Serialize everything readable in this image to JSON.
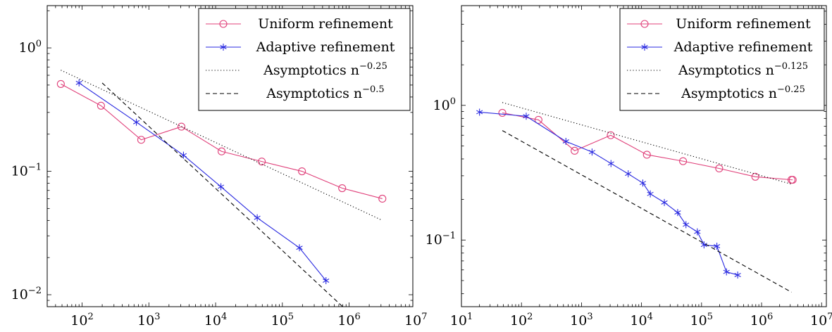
{
  "chart_data": [
    {
      "type": "line",
      "xscale": "log",
      "yscale": "log",
      "xlim": [
        30,
        9000000
      ],
      "ylim": [
        0.008,
        2.2
      ],
      "xticks": [
        {
          "v": 100,
          "label": "10^2"
        },
        {
          "v": 1000,
          "label": "10^3"
        },
        {
          "v": 10000,
          "label": "10^4"
        },
        {
          "v": 100000,
          "label": "10^5"
        },
        {
          "v": 1000000,
          "label": "10^6"
        },
        {
          "v": 10000000,
          "label": "10^7"
        }
      ],
      "yticks": [
        {
          "v": 0.01,
          "label": "10^-2"
        },
        {
          "v": 0.1,
          "label": "10^-1"
        },
        {
          "v": 1,
          "label": "10^0"
        }
      ],
      "grid": false,
      "legend_position": "top-right",
      "series": [
        {
          "name": "Uniform refinement",
          "color": "#e0407a",
          "marker": "circle",
          "dash": "solid",
          "x": [
            48,
            192,
            768,
            3072,
            12288,
            49152,
            196608,
            786432,
            3145728
          ],
          "y": [
            0.51,
            0.34,
            0.18,
            0.23,
            0.145,
            0.12,
            0.1,
            0.073,
            0.06
          ]
        },
        {
          "name": "Adaptive refinement",
          "color": "#2a2ae0",
          "marker": "star",
          "dash": "solid",
          "x": [
            90,
            650,
            3300,
            12000,
            42000,
            180000,
            450000
          ],
          "y": [
            0.52,
            0.25,
            0.135,
            0.075,
            0.042,
            0.024,
            0.013
          ]
        },
        {
          "name": "Asymptotics n^{-0.25}",
          "color": "#000000",
          "marker": "none",
          "dash": "dotted",
          "x": [
            48,
            3145728
          ],
          "y": [
            0.66,
            0.04
          ]
        },
        {
          "name": "Asymptotics n^{-0.5}",
          "color": "#000000",
          "marker": "none",
          "dash": "dashed",
          "x": [
            200,
            800000
          ],
          "y": [
            0.52,
            0.008
          ]
        }
      ],
      "legend_labels": [
        {
          "base": "Uniform refinement",
          "exp": ""
        },
        {
          "base": "Adaptive refinement",
          "exp": ""
        },
        {
          "base": "Asymptotics n",
          "exp": "−0.25"
        },
        {
          "base": "Asymptotics n",
          "exp": "−0.5"
        }
      ]
    },
    {
      "type": "line",
      "xscale": "log",
      "yscale": "log",
      "xlim": [
        10,
        12000000
      ],
      "ylim": [
        0.032,
        5.5
      ],
      "xticks": [
        {
          "v": 10,
          "label": "10^1"
        },
        {
          "v": 100,
          "label": "10^2"
        },
        {
          "v": 1000,
          "label": "10^3"
        },
        {
          "v": 10000,
          "label": "10^4"
        },
        {
          "v": 100000,
          "label": "10^5"
        },
        {
          "v": 1000000,
          "label": "10^6"
        },
        {
          "v": 10000000,
          "label": "10^7"
        }
      ],
      "yticks": [
        {
          "v": 0.1,
          "label": "10^-1"
        },
        {
          "v": 1,
          "label": "10^0"
        }
      ],
      "grid": false,
      "legend_position": "top-right",
      "series": [
        {
          "name": "Uniform refinement",
          "color": "#e0407a",
          "marker": "circle",
          "dash": "solid",
          "x": [
            48,
            192,
            768,
            3072,
            12288,
            49152,
            196608,
            786432,
            3145728,
            3300000
          ],
          "y": [
            0.88,
            0.78,
            0.46,
            0.6,
            0.43,
            0.385,
            0.34,
            0.295,
            0.28,
            0.28
          ]
        },
        {
          "name": "Adaptive refinement",
          "color": "#2a2ae0",
          "marker": "star",
          "dash": "solid",
          "x": [
            20,
            120,
            550,
            1500,
            3100,
            6000,
            10500,
            14000,
            24000,
            40000,
            55000,
            85000,
            110000,
            180000,
            260000,
            400000
          ],
          "y": [
            0.89,
            0.83,
            0.54,
            0.45,
            0.37,
            0.31,
            0.265,
            0.22,
            0.19,
            0.16,
            0.13,
            0.115,
            0.092,
            0.09,
            0.058,
            0.055
          ]
        },
        {
          "name": "Asymptotics n^{-0.125}",
          "color": "#000000",
          "marker": "none",
          "dash": "dotted",
          "x": [
            48,
            3145728
          ],
          "y": [
            1.05,
            0.26
          ]
        },
        {
          "name": "Asymptotics n^{-0.25}",
          "color": "#000000",
          "marker": "none",
          "dash": "dashed",
          "x": [
            48,
            3145728
          ],
          "y": [
            0.65,
            0.041
          ]
        }
      ],
      "legend_labels": [
        {
          "base": "Uniform refinement",
          "exp": ""
        },
        {
          "base": "Adaptive refinement",
          "exp": ""
        },
        {
          "base": "Asymptotics n",
          "exp": "−0.125"
        },
        {
          "base": "Asymptotics n",
          "exp": "−0.25"
        }
      ]
    }
  ]
}
